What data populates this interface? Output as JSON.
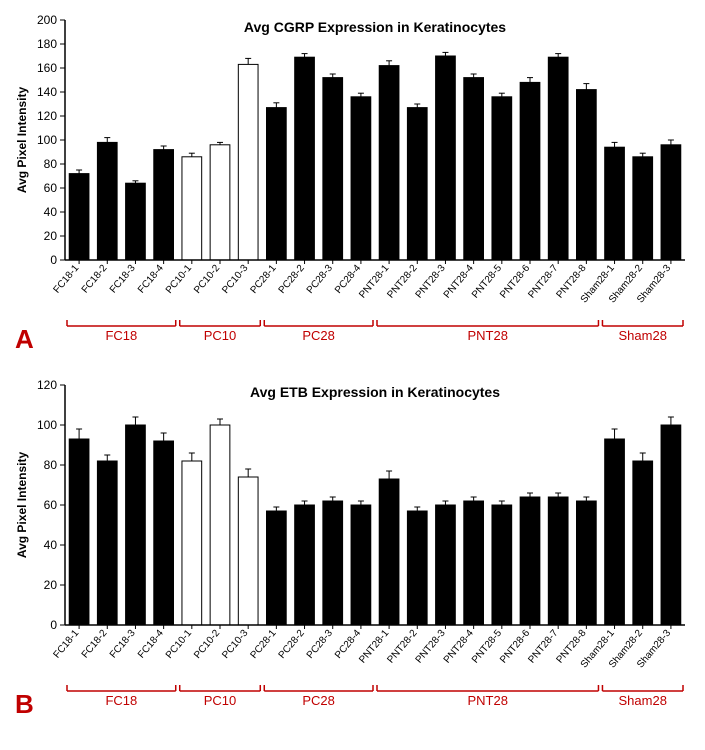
{
  "chartA": {
    "title": "Avg CGRP Expression in Keratinocytes",
    "ylabel": "Avg Pixel Intensity",
    "panel_label": "A",
    "ylim": [
      0,
      200
    ],
    "ytick_step": 20,
    "bar_width": 0.7,
    "title_fontsize": 14,
    "label_fontsize": 12,
    "background_color": "#ffffff",
    "filled_color": "#000000",
    "hollow_color": "#ffffff",
    "group_label_color": "#c00000",
    "categories": [
      "FC18-1",
      "FC18-2",
      "FC18-3",
      "FC18-4",
      "PC10-1",
      "PC10-2",
      "PC10-3",
      "PC28-1",
      "PC28-2",
      "PC28-3",
      "PC28-4",
      "PNT28-1",
      "PNT28-2",
      "PNT28-3",
      "PNT28-4",
      "PNT28-5",
      "PNT28-6",
      "PNT28-7",
      "PNT28-8",
      "Sham28-1",
      "Sham28-2",
      "Sham28-3"
    ],
    "values": [
      72,
      98,
      64,
      92,
      86,
      96,
      163,
      127,
      169,
      152,
      136,
      162,
      127,
      170,
      152,
      136,
      148,
      169,
      142,
      94,
      86,
      96
    ],
    "errors": [
      3,
      4,
      2,
      3,
      3,
      2,
      5,
      4,
      3,
      3,
      3,
      4,
      3,
      3,
      3,
      3,
      4,
      3,
      5,
      4,
      3,
      4
    ],
    "hollow": [
      false,
      false,
      false,
      false,
      true,
      true,
      true,
      false,
      false,
      false,
      false,
      false,
      false,
      false,
      false,
      false,
      false,
      false,
      false,
      false,
      false,
      false
    ],
    "groups": [
      {
        "label": "FC18",
        "start": 0,
        "end": 3
      },
      {
        "label": "PC10",
        "start": 4,
        "end": 6
      },
      {
        "label": "PC28",
        "start": 7,
        "end": 10
      },
      {
        "label": "PNT28",
        "start": 11,
        "end": 18
      },
      {
        "label": "Sham28",
        "start": 19,
        "end": 21
      }
    ]
  },
  "chartB": {
    "title": "Avg ETB Expression in Keratinocytes",
    "ylabel": "Avg Pixel Intensity",
    "panel_label": "B",
    "ylim": [
      0,
      120
    ],
    "ytick_step": 20,
    "bar_width": 0.7,
    "title_fontsize": 14,
    "label_fontsize": 12,
    "background_color": "#ffffff",
    "filled_color": "#000000",
    "hollow_color": "#ffffff",
    "group_label_color": "#c00000",
    "categories": [
      "FC18-1",
      "FC18-2",
      "FC18-3",
      "FC18-4",
      "PC10-1",
      "PC10-2",
      "PC10-3",
      "PC28-1",
      "PC28-2",
      "PC28-3",
      "PC28-4",
      "PNT28-1",
      "PNT28-2",
      "PNT28-3",
      "PNT28-4",
      "PNT28-5",
      "PNT28-6",
      "PNT28-7",
      "PNT28-8",
      "Sham28-1",
      "Sham28-2",
      "Sham28-3"
    ],
    "values": [
      93,
      82,
      100,
      92,
      82,
      100,
      74,
      57,
      60,
      62,
      60,
      73,
      57,
      60,
      62,
      60,
      64,
      64,
      62,
      93,
      82,
      100
    ],
    "errors": [
      5,
      3,
      4,
      4,
      4,
      3,
      4,
      2,
      2,
      2,
      2,
      4,
      2,
      2,
      2,
      2,
      2,
      2,
      2,
      5,
      4,
      4
    ],
    "hollow": [
      false,
      false,
      false,
      false,
      true,
      true,
      true,
      false,
      false,
      false,
      false,
      false,
      false,
      false,
      false,
      false,
      false,
      false,
      false,
      false,
      false,
      false
    ],
    "groups": [
      {
        "label": "FC18",
        "start": 0,
        "end": 3
      },
      {
        "label": "PC10",
        "start": 4,
        "end": 6
      },
      {
        "label": "PC28",
        "start": 7,
        "end": 10
      },
      {
        "label": "PNT28",
        "start": 11,
        "end": 18
      },
      {
        "label": "Sham28",
        "start": 19,
        "end": 21
      }
    ]
  }
}
